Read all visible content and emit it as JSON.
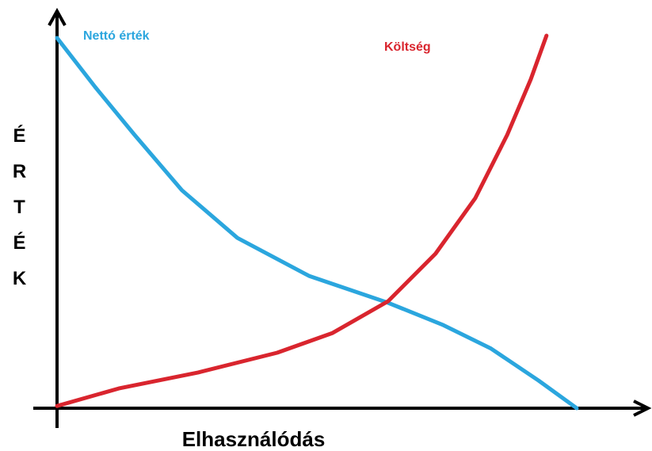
{
  "chart_data": {
    "type": "line",
    "xlabel": "Elhasználódás",
    "ylabel": "ÉRTÉK",
    "xlim": [
      0,
      100
    ],
    "ylim": [
      0,
      100
    ],
    "series": [
      {
        "name": "Nettó érték",
        "color": "#2ba6de",
        "x": [
          0,
          7.3,
          14.8,
          23.9,
          34.5,
          48.2,
          63.3,
          73.9,
          83,
          92.1,
          99.4
        ],
        "values": [
          99.4,
          86.2,
          73.4,
          58.5,
          45.7,
          35.5,
          28.3,
          22.3,
          16,
          7.4,
          0
        ]
      },
      {
        "name": "Költség",
        "color": "#d9252e",
        "x": [
          0,
          11.8,
          27,
          42.1,
          52.7,
          63.3,
          72.4,
          80,
          86.1,
          90.6,
          93.6
        ],
        "values": [
          0.6,
          5.3,
          9.6,
          14.9,
          20.2,
          28.7,
          41.5,
          56.4,
          73.4,
          88.3,
          100
        ]
      }
    ]
  }
}
